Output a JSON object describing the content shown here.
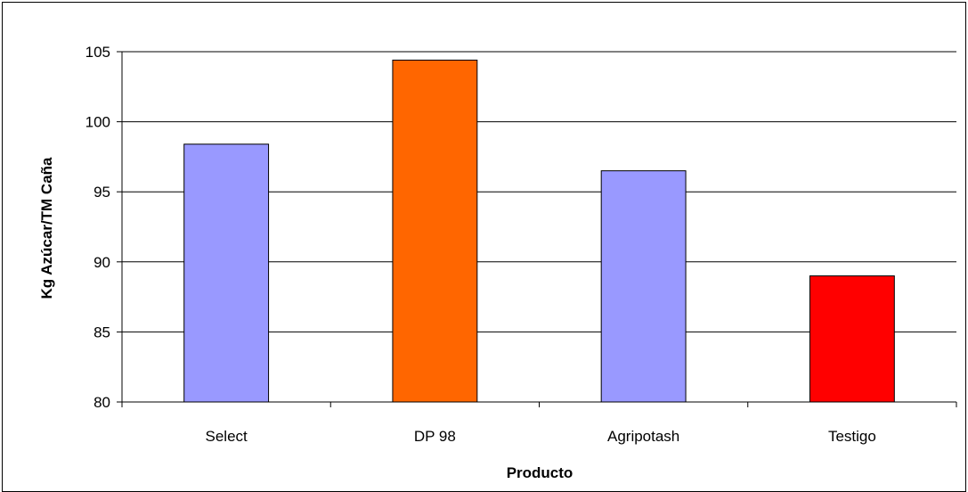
{
  "chart_data": {
    "type": "bar",
    "title": "",
    "xlabel": "Producto",
    "ylabel": "Kg Azúcar/TM Caña",
    "categories": [
      "Select",
      "DP 98",
      "Agripotash",
      "Testigo"
    ],
    "values": [
      98.4,
      104.4,
      96.5,
      89.0
    ],
    "colors": [
      "#9999ff",
      "#ff6600",
      "#9999ff",
      "#ff0000"
    ],
    "ylim": [
      80,
      105
    ],
    "yticks": [
      80,
      85,
      90,
      95,
      100,
      105
    ],
    "grid": true,
    "legend": "none"
  }
}
